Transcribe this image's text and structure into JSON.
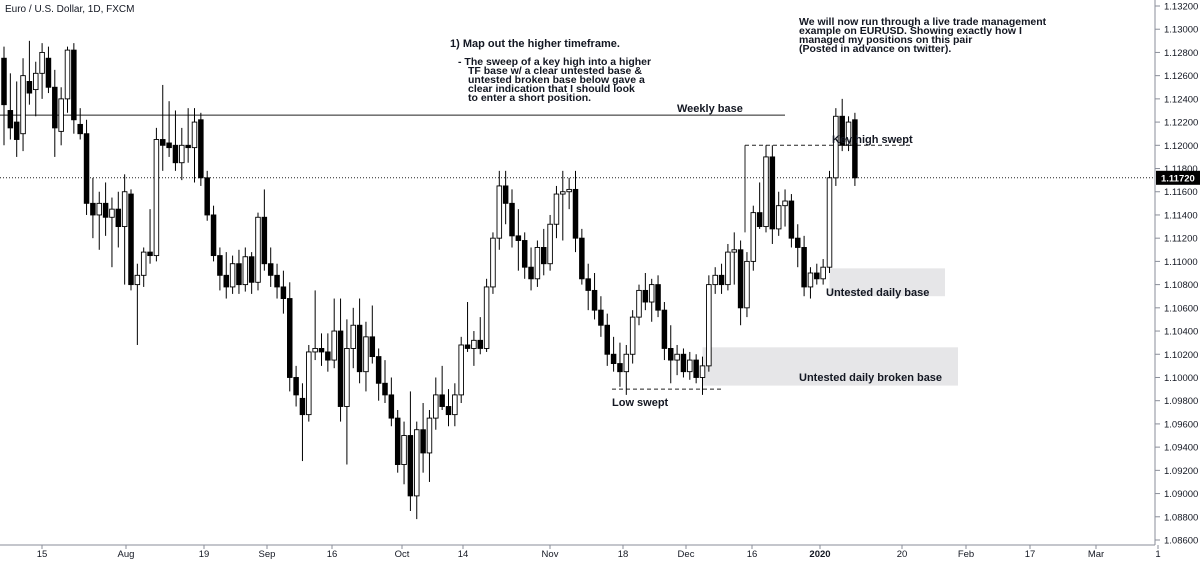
{
  "symbol_title": "Euro / U.S. Dollar, 1D, FXCM",
  "colors": {
    "candle_up_fill": "#ffffff",
    "candle_down_fill": "#000000",
    "candle_border": "#000000",
    "zone_fill": "#e6e6e8",
    "axis_text": "#131722",
    "price_label_bg": "#000000",
    "price_label_text": "#ffffff"
  },
  "chart_data": {
    "type": "candlestick",
    "title": "Euro / U.S. Dollar, 1D, FXCM",
    "y_axis": {
      "range": [
        1.086,
        1.132
      ],
      "ticks": [
        "1.13200",
        "1.13000",
        "1.12800",
        "1.12600",
        "1.12400",
        "1.12200",
        "1.12000",
        "1.11800",
        "1.11600",
        "1.11400",
        "1.11200",
        "1.11000",
        "1.10800",
        "1.10600",
        "1.10400",
        "1.10200",
        "1.10000",
        "1.09800",
        "1.09600",
        "1.09400",
        "1.09200",
        "1.09000",
        "1.08800",
        "1.08600"
      ],
      "current_price": "1.11720"
    },
    "x_axis": {
      "ticks": [
        "15",
        "Aug",
        "19",
        "Sep",
        "16",
        "Oct",
        "14",
        "Nov",
        "18",
        "Dec",
        "16",
        "2020",
        "20",
        "Feb",
        "17",
        "Mar",
        "1"
      ],
      "bold_ticks": [
        "2020"
      ]
    },
    "candles": [
      {
        "o": 1.1275,
        "h": 1.1285,
        "l": 1.12,
        "c": 1.1235
      },
      {
        "o": 1.123,
        "h": 1.1262,
        "l": 1.1205,
        "c": 1.1215
      },
      {
        "o": 1.122,
        "h": 1.1255,
        "l": 1.119,
        "c": 1.1205
      },
      {
        "o": 1.121,
        "h": 1.1275,
        "l": 1.1195,
        "c": 1.126
      },
      {
        "o": 1.1255,
        "h": 1.129,
        "l": 1.1235,
        "c": 1.1245
      },
      {
        "o": 1.1248,
        "h": 1.1272,
        "l": 1.1225,
        "c": 1.1262
      },
      {
        "o": 1.1262,
        "h": 1.1288,
        "l": 1.124,
        "c": 1.128
      },
      {
        "o": 1.1275,
        "h": 1.1285,
        "l": 1.1245,
        "c": 1.125
      },
      {
        "o": 1.125,
        "h": 1.1265,
        "l": 1.119,
        "c": 1.1215
      },
      {
        "o": 1.1212,
        "h": 1.125,
        "l": 1.12,
        "c": 1.124
      },
      {
        "o": 1.124,
        "h": 1.1285,
        "l": 1.1228,
        "c": 1.1282
      },
      {
        "o": 1.1282,
        "h": 1.1288,
        "l": 1.121,
        "c": 1.1222
      },
      {
        "o": 1.1218,
        "h": 1.1232,
        "l": 1.1205,
        "c": 1.121
      },
      {
        "o": 1.121,
        "h": 1.1222,
        "l": 1.114,
        "c": 1.115
      },
      {
        "o": 1.115,
        "h": 1.1172,
        "l": 1.112,
        "c": 1.114
      },
      {
        "o": 1.114,
        "h": 1.116,
        "l": 1.111,
        "c": 1.115
      },
      {
        "o": 1.115,
        "h": 1.1168,
        "l": 1.1122,
        "c": 1.1138
      },
      {
        "o": 1.1138,
        "h": 1.1155,
        "l": 1.1095,
        "c": 1.1145
      },
      {
        "o": 1.1145,
        "h": 1.116,
        "l": 1.1112,
        "c": 1.113
      },
      {
        "o": 1.113,
        "h": 1.1175,
        "l": 1.108,
        "c": 1.116
      },
      {
        "o": 1.1158,
        "h": 1.1162,
        "l": 1.1075,
        "c": 1.108
      },
      {
        "o": 1.108,
        "h": 1.1098,
        "l": 1.1028,
        "c": 1.1088
      },
      {
        "o": 1.1088,
        "h": 1.1112,
        "l": 1.1078,
        "c": 1.1108
      },
      {
        "o": 1.1108,
        "h": 1.1145,
        "l": 1.1098,
        "c": 1.1105
      },
      {
        "o": 1.1105,
        "h": 1.1215,
        "l": 1.11,
        "c": 1.1205
      },
      {
        "o": 1.1205,
        "h": 1.1252,
        "l": 1.1178,
        "c": 1.12
      },
      {
        "o": 1.1202,
        "h": 1.1238,
        "l": 1.119,
        "c": 1.1198
      },
      {
        "o": 1.12,
        "h": 1.123,
        "l": 1.1178,
        "c": 1.1185
      },
      {
        "o": 1.1185,
        "h": 1.1215,
        "l": 1.117,
        "c": 1.12
      },
      {
        "o": 1.12,
        "h": 1.1232,
        "l": 1.1185,
        "c": 1.1198
      },
      {
        "o": 1.1198,
        "h": 1.1232,
        "l": 1.1168,
        "c": 1.122
      },
      {
        "o": 1.1222,
        "h": 1.1228,
        "l": 1.1165,
        "c": 1.1172
      },
      {
        "o": 1.1172,
        "h": 1.1178,
        "l": 1.1135,
        "c": 1.114
      },
      {
        "o": 1.114,
        "h": 1.1148,
        "l": 1.11,
        "c": 1.1105
      },
      {
        "o": 1.1105,
        "h": 1.1112,
        "l": 1.1075,
        "c": 1.1088
      },
      {
        "o": 1.1088,
        "h": 1.1108,
        "l": 1.1068,
        "c": 1.1078
      },
      {
        "o": 1.1078,
        "h": 1.1105,
        "l": 1.1072,
        "c": 1.1098
      },
      {
        "o": 1.1098,
        "h": 1.111,
        "l": 1.1072,
        "c": 1.108
      },
      {
        "o": 1.108,
        "h": 1.1112,
        "l": 1.1074,
        "c": 1.1104
      },
      {
        "o": 1.1104,
        "h": 1.1108,
        "l": 1.1072,
        "c": 1.1082
      },
      {
        "o": 1.1082,
        "h": 1.1142,
        "l": 1.1075,
        "c": 1.1138
      },
      {
        "o": 1.1138,
        "h": 1.1162,
        "l": 1.1092,
        "c": 1.1098
      },
      {
        "o": 1.1098,
        "h": 1.1112,
        "l": 1.1078,
        "c": 1.1088
      },
      {
        "o": 1.1088,
        "h": 1.1098,
        "l": 1.1068,
        "c": 1.1078
      },
      {
        "o": 1.1078,
        "h": 1.1092,
        "l": 1.1055,
        "c": 1.1068
      },
      {
        "o": 1.1068,
        "h": 1.1082,
        "l": 1.0988,
        "c": 1.1
      },
      {
        "o": 1.1,
        "h": 1.101,
        "l": 1.0975,
        "c": 1.0985
      },
      {
        "o": 1.0982,
        "h": 1.0995,
        "l": 1.0928,
        "c": 1.0968
      },
      {
        "o": 1.0968,
        "h": 1.1028,
        "l": 1.0962,
        "c": 1.1022
      },
      {
        "o": 1.1022,
        "h": 1.1075,
        "l": 1.1015,
        "c": 1.1025
      },
      {
        "o": 1.1025,
        "h": 1.1038,
        "l": 1.101,
        "c": 1.1022
      },
      {
        "o": 1.1022,
        "h": 1.1038,
        "l": 1.1005,
        "c": 1.1015
      },
      {
        "o": 1.1015,
        "h": 1.1068,
        "l": 1.1008,
        "c": 1.104
      },
      {
        "o": 1.104,
        "h": 1.1068,
        "l": 1.0962,
        "c": 1.0975
      },
      {
        "o": 1.0975,
        "h": 1.105,
        "l": 1.0925,
        "c": 1.1025
      },
      {
        "o": 1.1025,
        "h": 1.106,
        "l": 1.1008,
        "c": 1.1045
      },
      {
        "o": 1.1045,
        "h": 1.1068,
        "l": 1.0995,
        "c": 1.1005
      },
      {
        "o": 1.1005,
        "h": 1.1048,
        "l": 1.0988,
        "c": 1.1035
      },
      {
        "o": 1.1035,
        "h": 1.1062,
        "l": 1.1012,
        "c": 1.1018
      },
      {
        "o": 1.1018,
        "h": 1.1025,
        "l": 1.098,
        "c": 1.0995
      },
      {
        "o": 1.0995,
        "h": 1.1015,
        "l": 1.0978,
        "c": 1.0985
      },
      {
        "o": 1.0985,
        "h": 1.1,
        "l": 1.0958,
        "c": 1.0965
      },
      {
        "o": 1.0965,
        "h": 1.0972,
        "l": 1.0918,
        "c": 1.0925
      },
      {
        "o": 1.0925,
        "h": 1.0962,
        "l": 1.0908,
        "c": 1.095
      },
      {
        "o": 1.095,
        "h": 1.0988,
        "l": 1.0885,
        "c": 1.0898
      },
      {
        "o": 1.0898,
        "h": 1.0962,
        "l": 1.0878,
        "c": 1.0955
      },
      {
        "o": 1.0955,
        "h": 1.0978,
        "l": 1.0918,
        "c": 1.0935
      },
      {
        "o": 1.0935,
        "h": 1.0972,
        "l": 1.091,
        "c": 1.0965
      },
      {
        "o": 1.0965,
        "h": 1.1,
        "l": 1.0955,
        "c": 1.0985
      },
      {
        "o": 1.0985,
        "h": 1.101,
        "l": 1.0972,
        "c": 1.0975
      },
      {
        "o": 1.0975,
        "h": 1.099,
        "l": 1.0958,
        "c": 1.0968
      },
      {
        "o": 1.0968,
        "h": 1.0995,
        "l": 1.0958,
        "c": 1.0985
      },
      {
        "o": 1.0985,
        "h": 1.1035,
        "l": 1.0978,
        "c": 1.1028
      },
      {
        "o": 1.1028,
        "h": 1.1065,
        "l": 1.1022,
        "c": 1.1025
      },
      {
        "o": 1.1025,
        "h": 1.104,
        "l": 1.101,
        "c": 1.1032
      },
      {
        "o": 1.1032,
        "h": 1.1052,
        "l": 1.102,
        "c": 1.1025
      },
      {
        "o": 1.1025,
        "h": 1.1085,
        "l": 1.1022,
        "c": 1.1078
      },
      {
        "o": 1.1078,
        "h": 1.1125,
        "l": 1.1072,
        "c": 1.112
      },
      {
        "o": 1.112,
        "h": 1.1178,
        "l": 1.111,
        "c": 1.1165
      },
      {
        "o": 1.1165,
        "h": 1.1178,
        "l": 1.1132,
        "c": 1.115
      },
      {
        "o": 1.115,
        "h": 1.1162,
        "l": 1.1112,
        "c": 1.1122
      },
      {
        "o": 1.1122,
        "h": 1.1145,
        "l": 1.1092,
        "c": 1.1118
      },
      {
        "o": 1.1118,
        "h": 1.1125,
        "l": 1.1085,
        "c": 1.1095
      },
      {
        "o": 1.1095,
        "h": 1.1112,
        "l": 1.1075,
        "c": 1.1085
      },
      {
        "o": 1.1085,
        "h": 1.1118,
        "l": 1.1078,
        "c": 1.1112
      },
      {
        "o": 1.1112,
        "h": 1.1128,
        "l": 1.1088,
        "c": 1.1098
      },
      {
        "o": 1.1098,
        "h": 1.114,
        "l": 1.1092,
        "c": 1.1132
      },
      {
        "o": 1.1132,
        "h": 1.1165,
        "l": 1.112,
        "c": 1.1158
      },
      {
        "o": 1.1158,
        "h": 1.1178,
        "l": 1.1118,
        "c": 1.116
      },
      {
        "o": 1.116,
        "h": 1.1172,
        "l": 1.1145,
        "c": 1.1162
      },
      {
        "o": 1.1162,
        "h": 1.1178,
        "l": 1.1108,
        "c": 1.112
      },
      {
        "o": 1.112,
        "h": 1.1128,
        "l": 1.108,
        "c": 1.1085
      },
      {
        "o": 1.1085,
        "h": 1.1098,
        "l": 1.1058,
        "c": 1.1075
      },
      {
        "o": 1.1075,
        "h": 1.109,
        "l": 1.105,
        "c": 1.1058
      },
      {
        "o": 1.1058,
        "h": 1.107,
        "l": 1.1035,
        "c": 1.1045
      },
      {
        "o": 1.1045,
        "h": 1.1055,
        "l": 1.101,
        "c": 1.102
      },
      {
        "o": 1.102,
        "h": 1.1035,
        "l": 1.1005,
        "c": 1.1012
      },
      {
        "o": 1.1012,
        "h": 1.103,
        "l": 1.0992,
        "c": 1.1005
      },
      {
        "o": 1.1005,
        "h": 1.1028,
        "l": 1.0985,
        "c": 1.102
      },
      {
        "o": 1.102,
        "h": 1.1058,
        "l": 1.1012,
        "c": 1.1052
      },
      {
        "o": 1.1052,
        "h": 1.108,
        "l": 1.1045,
        "c": 1.1075
      },
      {
        "o": 1.1075,
        "h": 1.109,
        "l": 1.1058,
        "c": 1.1065
      },
      {
        "o": 1.1065,
        "h": 1.1085,
        "l": 1.1048,
        "c": 1.108
      },
      {
        "o": 1.108,
        "h": 1.1088,
        "l": 1.1052,
        "c": 1.1058
      },
      {
        "o": 1.1058,
        "h": 1.1065,
        "l": 1.1015,
        "c": 1.1025
      },
      {
        "o": 1.1025,
        "h": 1.1045,
        "l": 1.0995,
        "c": 1.1015
      },
      {
        "o": 1.1015,
        "h": 1.1028,
        "l": 1.1002,
        "c": 1.102
      },
      {
        "o": 1.102,
        "h": 1.1025,
        "l": 1.1,
        "c": 1.1005
      },
      {
        "o": 1.1005,
        "h": 1.1022,
        "l": 1.0998,
        "c": 1.1015
      },
      {
        "o": 1.1015,
        "h": 1.102,
        "l": 1.0995,
        "c": 1.1
      },
      {
        "o": 1.1,
        "h": 1.1018,
        "l": 1.0985,
        "c": 1.101
      },
      {
        "o": 1.101,
        "h": 1.1088,
        "l": 1.1005,
        "c": 1.108
      },
      {
        "o": 1.108,
        "h": 1.1095,
        "l": 1.1072,
        "c": 1.1088
      },
      {
        "o": 1.1088,
        "h": 1.1098,
        "l": 1.1072,
        "c": 1.108
      },
      {
        "o": 1.108,
        "h": 1.1115,
        "l": 1.1075,
        "c": 1.1108
      },
      {
        "o": 1.1108,
        "h": 1.1125,
        "l": 1.108,
        "c": 1.111
      },
      {
        "o": 1.111,
        "h": 1.1118,
        "l": 1.1045,
        "c": 1.106
      },
      {
        "o": 1.106,
        "h": 1.1108,
        "l": 1.1052,
        "c": 1.11
      },
      {
        "o": 1.11,
        "h": 1.1148,
        "l": 1.1092,
        "c": 1.1142
      },
      {
        "o": 1.1142,
        "h": 1.1168,
        "l": 1.1128,
        "c": 1.113
      },
      {
        "o": 1.113,
        "h": 1.12,
        "l": 1.1125,
        "c": 1.119
      },
      {
        "o": 1.119,
        "h": 1.12,
        "l": 1.1115,
        "c": 1.1128
      },
      {
        "o": 1.1128,
        "h": 1.116,
        "l": 1.1122,
        "c": 1.1148
      },
      {
        "o": 1.1148,
        "h": 1.1162,
        "l": 1.113,
        "c": 1.1152
      },
      {
        "o": 1.1152,
        "h": 1.1158,
        "l": 1.1112,
        "c": 1.112
      },
      {
        "o": 1.112,
        "h": 1.1132,
        "l": 1.1095,
        "c": 1.1112
      },
      {
        "o": 1.1112,
        "h": 1.1122,
        "l": 1.107,
        "c": 1.1078
      },
      {
        "o": 1.1078,
        "h": 1.1095,
        "l": 1.1068,
        "c": 1.109
      },
      {
        "o": 1.109,
        "h": 1.1098,
        "l": 1.108,
        "c": 1.1085
      },
      {
        "o": 1.1085,
        "h": 1.1102,
        "l": 1.108,
        "c": 1.1095
      },
      {
        "o": 1.1095,
        "h": 1.1178,
        "l": 1.109,
        "c": 1.1172
      },
      {
        "o": 1.1172,
        "h": 1.1232,
        "l": 1.1165,
        "c": 1.1225
      },
      {
        "o": 1.1225,
        "h": 1.124,
        "l": 1.1195,
        "c": 1.12
      },
      {
        "o": 1.12,
        "h": 1.1225,
        "l": 1.1195,
        "c": 1.122
      },
      {
        "o": 1.1222,
        "h": 1.1228,
        "l": 1.1165,
        "c": 1.1172
      }
    ],
    "levels": [
      {
        "name": "weekly-base",
        "price": 1.1226,
        "from_index": 0,
        "to_index": 133,
        "style": "solid",
        "label": "Weekly base"
      },
      {
        "name": "key-high",
        "price": 1.12,
        "from_index": 123,
        "to_index": 152,
        "style": "dashed",
        "label": "Key high swept"
      },
      {
        "name": "low-swept",
        "price": 1.099,
        "from_index": 80,
        "to_index": 103,
        "style": "dashed",
        "label": "Low swept"
      },
      {
        "name": "current-price",
        "price": 1.1172,
        "from_index": 0,
        "to_index": 180,
        "style": "dotted",
        "label": ""
      }
    ],
    "zones": [
      {
        "name": "untested-daily-base",
        "top": 1.1094,
        "bottom": 1.107,
        "from_index": 130,
        "to_index": 154,
        "label": "Untested daily base"
      },
      {
        "name": "untested-daily-broken-base",
        "top": 1.1026,
        "bottom": 1.0993,
        "from_index": 110,
        "to_index": 157,
        "label": "Untested daily broken base"
      }
    ]
  },
  "annotations": {
    "map_heading": "1) Map out the higher timeframe.",
    "map_lines": [
      "- The sweep of a key high into a higher",
      "TF base w/ a clear untested base &",
      "untested broken base below gave a",
      "clear indication that I should look",
      "to enter a short position."
    ],
    "intro_lines": [
      "We will now run through a live trade management",
      "example on EURUSD. Showing exactly how I",
      "managed my positions on this pair",
      "(Posted in advance on twitter)."
    ]
  }
}
